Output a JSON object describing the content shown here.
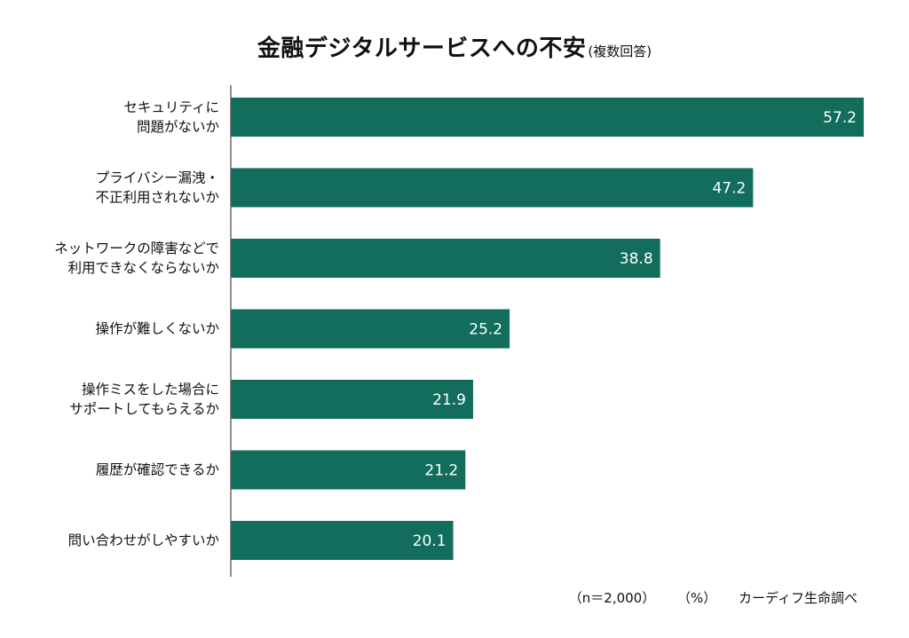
{
  "chart_data": {
    "type": "bar",
    "orientation": "horizontal",
    "title": "金融デジタルサービスへの不安",
    "subtitle": "(複数回答)",
    "categories": [
      [
        "セキュリティに",
        "問題がないか"
      ],
      [
        "プライバシー漏洩・",
        "不正利用されないか"
      ],
      [
        "ネットワークの障害などで",
        "利用できなくならないか"
      ],
      [
        "操作が難しくないか"
      ],
      [
        "操作ミスをした場合に",
        "サポートしてもらえるか"
      ],
      [
        "履歴が確認できるか"
      ],
      [
        "問い合わせがしやすいか"
      ]
    ],
    "values": [
      57.2,
      47.2,
      38.8,
      25.2,
      21.9,
      21.2,
      20.1
    ],
    "value_labels": [
      "57.2",
      "47.2",
      "38.8",
      "25.2",
      "21.9",
      "21.2",
      "20.1"
    ],
    "xlim": [
      0,
      57.2
    ],
    "unit": "%",
    "bar_color": "#126d5d"
  },
  "footnote": {
    "sample": "（n＝2,000）",
    "unit": "（%）",
    "source": "カーディフ生命調べ"
  }
}
